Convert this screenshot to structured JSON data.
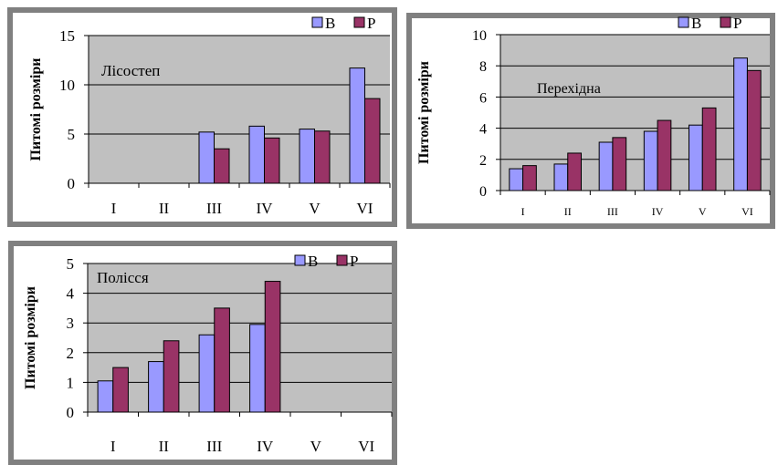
{
  "colors": {
    "plot_area": "#c0c0c0",
    "series_b": "#9999ff",
    "series_p": "#993366",
    "axis": "#000000",
    "frame": "#808080"
  },
  "chart_data": [
    {
      "type": "bar",
      "annotation": "Лісостеп",
      "ylabel": "Питомі розміри",
      "categories": [
        "I",
        "II",
        "III",
        "IV",
        "V",
        "VI"
      ],
      "ylim": [
        0,
        15
      ],
      "yticks": [
        0,
        5,
        10,
        15
      ],
      "grid": true,
      "legend_position": "top-right",
      "series": [
        {
          "name": "В",
          "values": [
            0,
            0,
            5.2,
            5.8,
            5.5,
            11.7
          ]
        },
        {
          "name": "Р",
          "values": [
            0,
            0,
            3.5,
            4.6,
            5.3,
            8.6
          ]
        }
      ]
    },
    {
      "type": "bar",
      "annotation": "Перехідна",
      "ylabel": "Питомі розміри",
      "categories": [
        "I",
        "II",
        "III",
        "IV",
        "V",
        "VI"
      ],
      "ylim": [
        0,
        10
      ],
      "yticks": [
        0,
        2,
        4,
        6,
        8,
        10
      ],
      "grid": true,
      "legend_position": "top-right",
      "series": [
        {
          "name": "В",
          "values": [
            1.4,
            1.7,
            3.1,
            3.8,
            4.2,
            8.5
          ]
        },
        {
          "name": "Р",
          "values": [
            1.6,
            2.4,
            3.4,
            4.5,
            5.3,
            7.7
          ]
        }
      ]
    },
    {
      "type": "bar",
      "annotation": "Полісся",
      "ylabel": "Питомі  розміри",
      "categories": [
        "I",
        "II",
        "III",
        "IV",
        "V",
        "VI"
      ],
      "ylim": [
        0,
        5
      ],
      "yticks": [
        0,
        1,
        2,
        3,
        4,
        5
      ],
      "grid": true,
      "legend_position": "top-right",
      "series": [
        {
          "name": "В",
          "values": [
            1.05,
            1.7,
            2.6,
            2.95,
            0,
            0
          ]
        },
        {
          "name": "Р",
          "values": [
            1.5,
            2.4,
            3.5,
            4.4,
            0,
            0
          ]
        }
      ]
    }
  ]
}
